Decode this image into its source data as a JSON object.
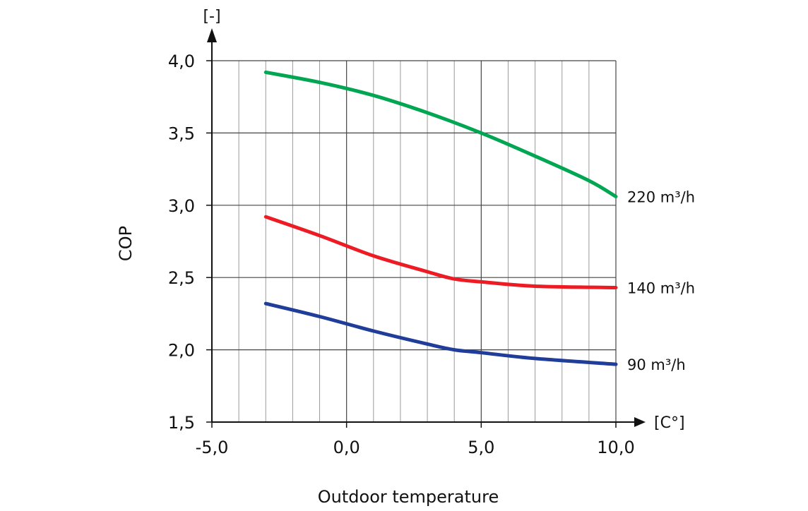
{
  "chart_data": {
    "type": "line",
    "ylabel": "COP",
    "y_unit": "[-]",
    "xlabel": "Outdoor temperature",
    "x_unit": "[C°]",
    "xlim": [
      -5,
      10
    ],
    "ylim": [
      1.5,
      4.0
    ],
    "x_ticks": [
      -5,
      0,
      5,
      10
    ],
    "x_tick_labels": [
      "-5,0",
      "0,0",
      "5,0",
      "10,0"
    ],
    "y_ticks": [
      1.5,
      2.0,
      2.5,
      3.0,
      3.5,
      4.0
    ],
    "y_tick_labels": [
      "1,5",
      "2,0",
      "2,5",
      "3,0",
      "3,5",
      "4,0"
    ],
    "x_minor_step": 1,
    "grid": true,
    "series": [
      {
        "name": "220 m³/h",
        "color": "#00a651",
        "points": [
          [
            -3,
            3.92
          ],
          [
            -1,
            3.85
          ],
          [
            1,
            3.76
          ],
          [
            3,
            3.64
          ],
          [
            5,
            3.5
          ],
          [
            7,
            3.34
          ],
          [
            9,
            3.17
          ],
          [
            10,
            3.06
          ]
        ]
      },
      {
        "name": "140 m³/h",
        "color": "#ed1c24",
        "points": [
          [
            -3,
            2.92
          ],
          [
            -1,
            2.79
          ],
          [
            1,
            2.65
          ],
          [
            3,
            2.54
          ],
          [
            4,
            2.49
          ],
          [
            5,
            2.47
          ],
          [
            7,
            2.44
          ],
          [
            10,
            2.43
          ]
        ]
      },
      {
        "name": "90 m³/h",
        "color": "#1f3d99",
        "points": [
          [
            -3,
            2.32
          ],
          [
            -1,
            2.23
          ],
          [
            1,
            2.13
          ],
          [
            3,
            2.04
          ],
          [
            4,
            2.0
          ],
          [
            5,
            1.98
          ],
          [
            7,
            1.94
          ],
          [
            10,
            1.9
          ]
        ]
      }
    ]
  }
}
